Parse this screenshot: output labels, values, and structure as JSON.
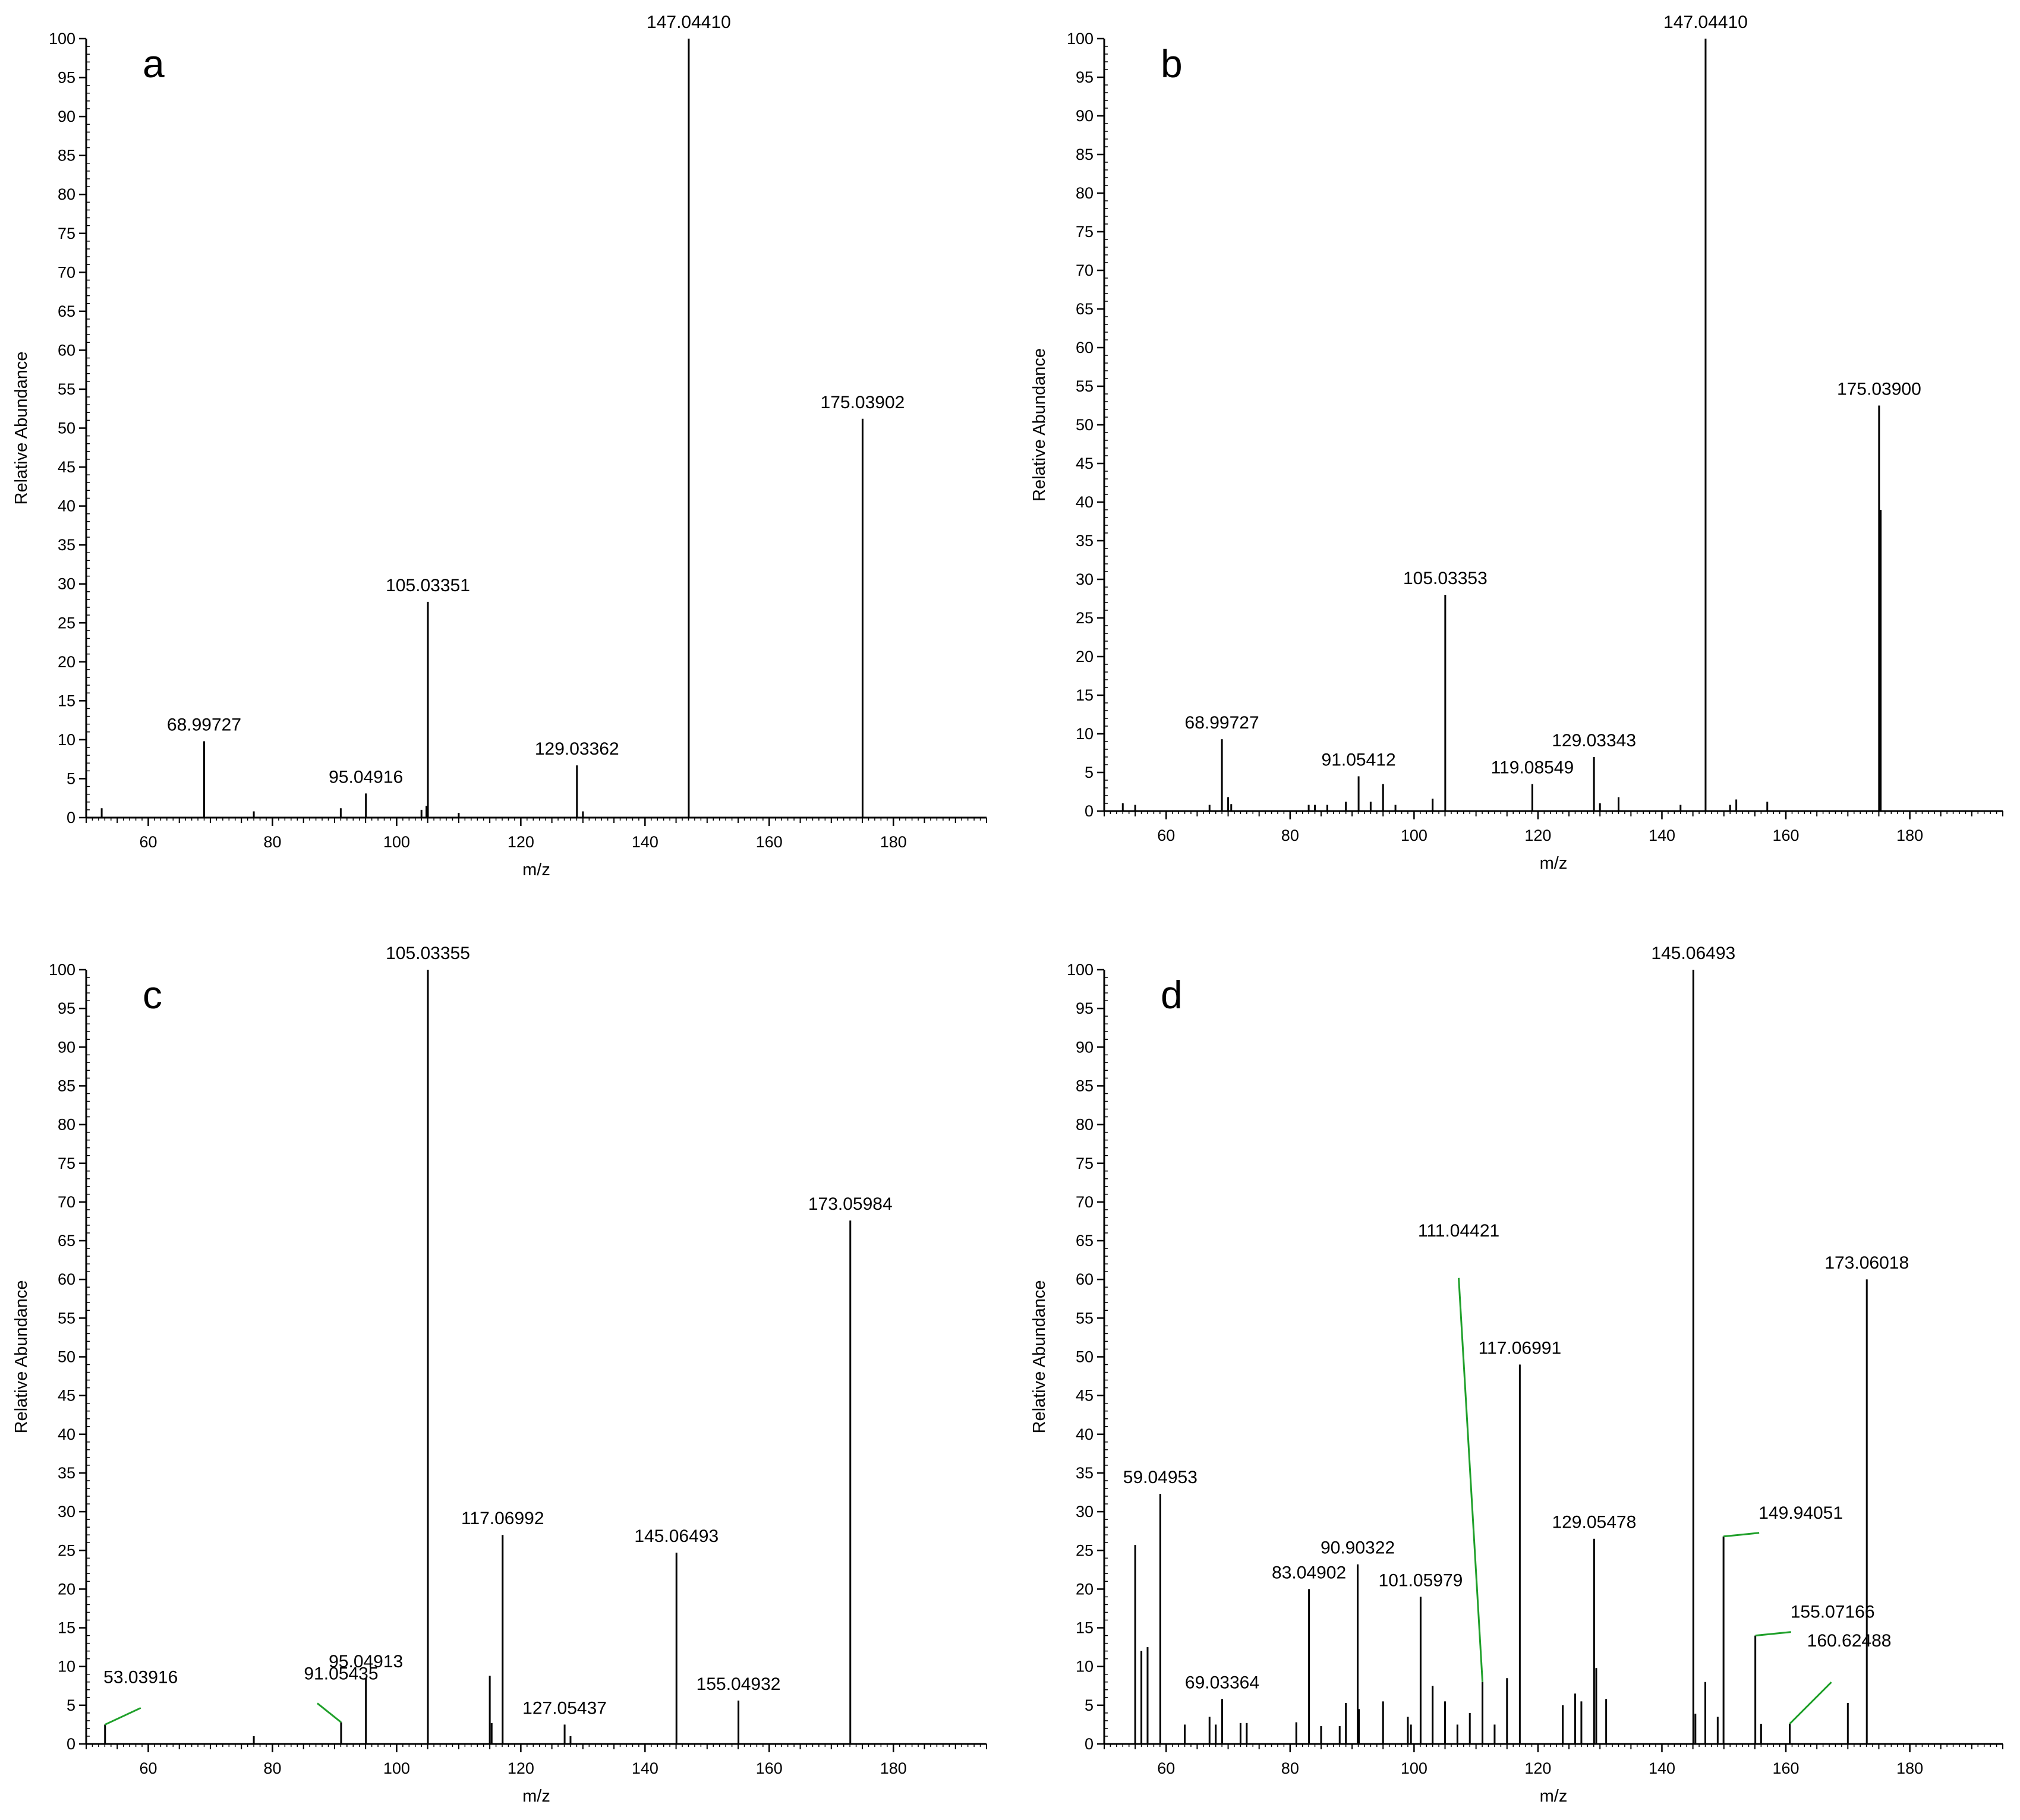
{
  "chart_data": [
    {
      "type": "bar",
      "panel": "a",
      "xlabel": "m/z",
      "ylabel": "Relative Abundance",
      "xlim": [
        50,
        195
      ],
      "ylim": [
        0,
        100
      ],
      "xticks": [
        60,
        80,
        100,
        120,
        140,
        160,
        180
      ],
      "yticks": [
        0,
        5,
        10,
        15,
        20,
        25,
        30,
        35,
        40,
        45,
        50,
        55,
        60,
        65,
        70,
        75,
        80,
        85,
        90,
        95,
        100
      ],
      "peaks": [
        {
          "mz": 52.5,
          "value": 1.2
        },
        {
          "mz": 68.99727,
          "value": 9.8,
          "label": "68.99727"
        },
        {
          "mz": 77.0,
          "value": 0.8
        },
        {
          "mz": 91.0,
          "value": 1.2
        },
        {
          "mz": 95.04916,
          "value": 3.1,
          "label": "95.04916"
        },
        {
          "mz": 104.0,
          "value": 1.0
        },
        {
          "mz": 104.8,
          "value": 1.5
        },
        {
          "mz": 105.03351,
          "value": 27.7,
          "label": "105.03351"
        },
        {
          "mz": 110.0,
          "value": 0.6
        },
        {
          "mz": 129.03362,
          "value": 6.7,
          "label": "129.03362"
        },
        {
          "mz": 130.0,
          "value": 0.8
        },
        {
          "mz": 147.0441,
          "value": 100,
          "label": "147.04410"
        },
        {
          "mz": 175.03902,
          "value": 51.2,
          "label": "175.03902"
        }
      ]
    },
    {
      "type": "bar",
      "panel": "b",
      "xlabel": "m/z",
      "ylabel": "Relative Abundance",
      "xlim": [
        50,
        195
      ],
      "ylim": [
        0,
        100
      ],
      "xticks": [
        60,
        80,
        100,
        120,
        140,
        160,
        180
      ],
      "yticks": [
        0,
        5,
        10,
        15,
        20,
        25,
        30,
        35,
        40,
        45,
        50,
        55,
        60,
        65,
        70,
        75,
        80,
        85,
        90,
        95,
        100
      ],
      "peaks": [
        {
          "mz": 53.0,
          "value": 1.0
        },
        {
          "mz": 55.0,
          "value": 0.8
        },
        {
          "mz": 67.0,
          "value": 0.8
        },
        {
          "mz": 68.99727,
          "value": 9.3,
          "label": "68.99727"
        },
        {
          "mz": 70.0,
          "value": 1.8
        },
        {
          "mz": 70.5,
          "value": 0.9
        },
        {
          "mz": 83.0,
          "value": 0.8
        },
        {
          "mz": 84.0,
          "value": 0.8
        },
        {
          "mz": 86.0,
          "value": 0.8
        },
        {
          "mz": 89.0,
          "value": 1.2
        },
        {
          "mz": 91.05412,
          "value": 4.5,
          "label": "91.05412"
        },
        {
          "mz": 93.0,
          "value": 1.2
        },
        {
          "mz": 95.0,
          "value": 3.5
        },
        {
          "mz": 97.0,
          "value": 0.8
        },
        {
          "mz": 103.0,
          "value": 1.6
        },
        {
          "mz": 105.03353,
          "value": 28.0,
          "label": "105.03353"
        },
        {
          "mz": 119.08549,
          "value": 3.5,
          "label": "119.08549"
        },
        {
          "mz": 129.03343,
          "value": 7.0,
          "label": "129.03343"
        },
        {
          "mz": 130.0,
          "value": 1.0
        },
        {
          "mz": 133.0,
          "value": 1.8
        },
        {
          "mz": 143.0,
          "value": 0.8
        },
        {
          "mz": 147.0441,
          "value": 100,
          "label": "147.04410"
        },
        {
          "mz": 151.0,
          "value": 0.8
        },
        {
          "mz": 152.0,
          "value": 1.5
        },
        {
          "mz": 157.0,
          "value": 1.2
        },
        {
          "mz": 175.039,
          "value": 52.5,
          "label": "175.03900"
        },
        {
          "mz": 175.3,
          "value": 39.0
        }
      ]
    },
    {
      "type": "bar",
      "panel": "c",
      "xlabel": "m/z",
      "ylabel": "Relative Abundance",
      "xlim": [
        50,
        195
      ],
      "ylim": [
        0,
        100
      ],
      "xticks": [
        60,
        80,
        100,
        120,
        140,
        160,
        180
      ],
      "yticks": [
        0,
        5,
        10,
        15,
        20,
        25,
        30,
        35,
        40,
        45,
        50,
        55,
        60,
        65,
        70,
        75,
        80,
        85,
        90,
        95,
        100
      ],
      "peaks": [
        {
          "mz": 53.03916,
          "value": 2.5,
          "label": "53.03916",
          "leader": true
        },
        {
          "mz": 77.0,
          "value": 1.0
        },
        {
          "mz": 91.05435,
          "value": 2.8,
          "label": "91.05435",
          "leader": true
        },
        {
          "mz": 95.04913,
          "value": 8.5,
          "label": "95.04913"
        },
        {
          "mz": 105.03355,
          "value": 100,
          "label": "105.03355"
        },
        {
          "mz": 115.0,
          "value": 8.8
        },
        {
          "mz": 115.3,
          "value": 2.7
        },
        {
          "mz": 117.06992,
          "value": 27.0,
          "label": "117.06992"
        },
        {
          "mz": 127.05437,
          "value": 2.5,
          "label": "127.05437"
        },
        {
          "mz": 128.0,
          "value": 1.0
        },
        {
          "mz": 145.06493,
          "value": 24.7,
          "label": "145.06493"
        },
        {
          "mz": 155.04932,
          "value": 5.6,
          "label": "155.04932"
        },
        {
          "mz": 173.05984,
          "value": 67.6,
          "label": "173.05984"
        }
      ]
    },
    {
      "type": "bar",
      "panel": "d",
      "xlabel": "m/z",
      "ylabel": "Relative Abundance",
      "xlim": [
        50,
        195
      ],
      "ylim": [
        0,
        100
      ],
      "xticks": [
        60,
        80,
        100,
        120,
        140,
        160,
        180
      ],
      "yticks": [
        0,
        5,
        10,
        15,
        20,
        25,
        30,
        35,
        40,
        45,
        50,
        55,
        60,
        65,
        70,
        75,
        80,
        85,
        90,
        95,
        100
      ],
      "peaks": [
        {
          "mz": 55.0,
          "value": 25.7
        },
        {
          "mz": 56.0,
          "value": 12.0
        },
        {
          "mz": 57.0,
          "value": 12.5
        },
        {
          "mz": 59.04953,
          "value": 32.3,
          "label": "59.04953"
        },
        {
          "mz": 63.0,
          "value": 2.5
        },
        {
          "mz": 67.0,
          "value": 3.5
        },
        {
          "mz": 68.0,
          "value": 2.5
        },
        {
          "mz": 69.03364,
          "value": 5.8,
          "label": "69.03364"
        },
        {
          "mz": 72.0,
          "value": 2.7
        },
        {
          "mz": 73.0,
          "value": 2.7
        },
        {
          "mz": 81.0,
          "value": 2.8
        },
        {
          "mz": 83.04902,
          "value": 20.0,
          "label": "83.04902"
        },
        {
          "mz": 85.0,
          "value": 2.3
        },
        {
          "mz": 88.0,
          "value": 2.3
        },
        {
          "mz": 89.0,
          "value": 5.3
        },
        {
          "mz": 90.90322,
          "value": 23.2,
          "label": "90.90322"
        },
        {
          "mz": 91.1,
          "value": 4.5
        },
        {
          "mz": 95.0,
          "value": 5.5
        },
        {
          "mz": 99.0,
          "value": 3.5
        },
        {
          "mz": 99.5,
          "value": 2.5
        },
        {
          "mz": 101.05979,
          "value": 19.0,
          "label": "101.05979"
        },
        {
          "mz": 103.0,
          "value": 7.5
        },
        {
          "mz": 105.0,
          "value": 5.5
        },
        {
          "mz": 107.0,
          "value": 2.5
        },
        {
          "mz": 109.0,
          "value": 4.0
        },
        {
          "mz": 111.04421,
          "value": 8.0,
          "label": "111.04421",
          "leader": true
        },
        {
          "mz": 113.0,
          "value": 2.5
        },
        {
          "mz": 115.0,
          "value": 8.5
        },
        {
          "mz": 117.06991,
          "value": 49.0,
          "label": "117.06991"
        },
        {
          "mz": 124.0,
          "value": 5.0
        },
        {
          "mz": 126.0,
          "value": 6.5
        },
        {
          "mz": 127.0,
          "value": 5.5
        },
        {
          "mz": 129.05478,
          "value": 26.5,
          "label": "129.05478"
        },
        {
          "mz": 129.4,
          "value": 9.8
        },
        {
          "mz": 131.0,
          "value": 5.8
        },
        {
          "mz": 145.06493,
          "value": 100,
          "label": "145.06493"
        },
        {
          "mz": 145.4,
          "value": 3.9
        },
        {
          "mz": 147.0,
          "value": 8.0
        },
        {
          "mz": 149.0,
          "value": 3.5
        },
        {
          "mz": 149.94051,
          "value": 26.8,
          "label": "149.94051",
          "leader": true
        },
        {
          "mz": 155.07166,
          "value": 14.0,
          "label": "155.07166",
          "leader": true
        },
        {
          "mz": 156.0,
          "value": 2.6
        },
        {
          "mz": 160.62488,
          "value": 2.6,
          "label": "160.62488",
          "leader": true
        },
        {
          "mz": 170.0,
          "value": 5.3
        },
        {
          "mz": 173.06018,
          "value": 60.0,
          "label": "173.06018"
        }
      ]
    }
  ]
}
